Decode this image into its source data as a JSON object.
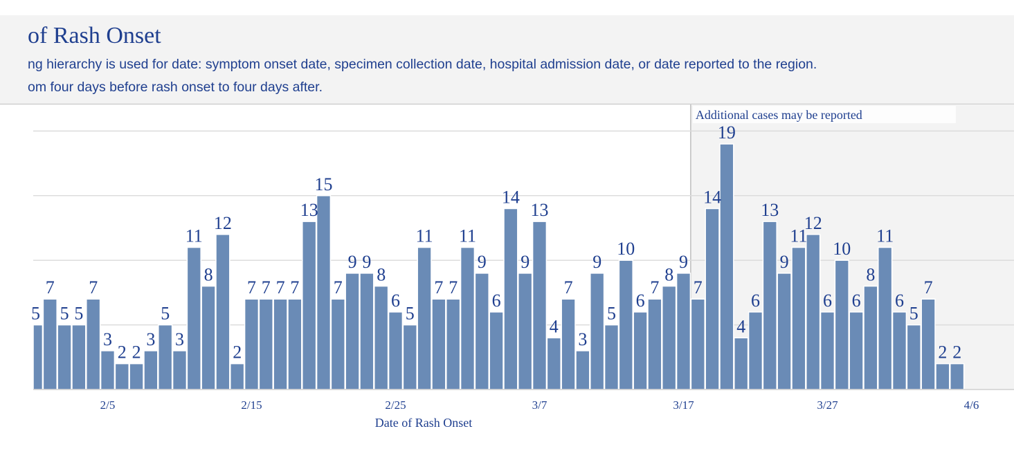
{
  "chart_data": {
    "type": "bar",
    "title": "of Rash Onset",
    "subtitle_lines": [
      "ng hierarchy is used for date: symptom onset date, specimen collection date, hospital admission date, or date reported to the region.",
      "om four days before rash onset to four days after."
    ],
    "xlabel": "Date of Rash Onset",
    "ylabel": "",
    "ylim": [
      0,
      20
    ],
    "grid": true,
    "x_tick_labels": [
      "2/5",
      "2/15",
      "2/25",
      "3/7",
      "3/17",
      "3/27",
      "4/6"
    ],
    "x": [
      "1/31",
      "2/1",
      "2/2",
      "2/3",
      "2/4",
      "2/5",
      "2/6",
      "2/7",
      "2/8",
      "2/9",
      "2/10",
      "2/11",
      "2/12",
      "2/13",
      "2/14",
      "2/15",
      "2/16",
      "2/17",
      "2/18",
      "2/19",
      "2/20",
      "2/21",
      "2/22",
      "2/23",
      "2/24",
      "2/25",
      "2/26",
      "2/27",
      "2/28",
      "3/1",
      "3/2",
      "3/3",
      "3/4",
      "3/5",
      "3/6",
      "3/7",
      "3/8",
      "3/9",
      "3/10",
      "3/11",
      "3/12",
      "3/13",
      "3/14",
      "3/15",
      "3/16",
      "3/17",
      "3/18",
      "3/19",
      "3/20",
      "3/21",
      "3/22",
      "3/23",
      "3/24",
      "3/25",
      "3/26",
      "3/27",
      "3/28",
      "3/29",
      "3/30",
      "3/31",
      "4/1",
      "4/2",
      "4/3",
      "4/4",
      "4/5"
    ],
    "values": [
      5,
      7,
      5,
      5,
      7,
      3,
      2,
      2,
      3,
      5,
      3,
      11,
      8,
      12,
      2,
      7,
      7,
      7,
      7,
      13,
      15,
      7,
      9,
      9,
      8,
      6,
      5,
      11,
      7,
      7,
      11,
      9,
      6,
      14,
      9,
      13,
      4,
      7,
      3,
      9,
      5,
      10,
      6,
      7,
      8,
      9,
      7,
      14,
      19,
      4,
      6,
      13,
      9,
      11,
      12,
      6,
      10,
      6,
      8,
      11,
      6,
      5,
      7,
      2,
      2
    ],
    "shaded_region": {
      "start": "3/18",
      "label": "Additional cases may be reported"
    }
  }
}
